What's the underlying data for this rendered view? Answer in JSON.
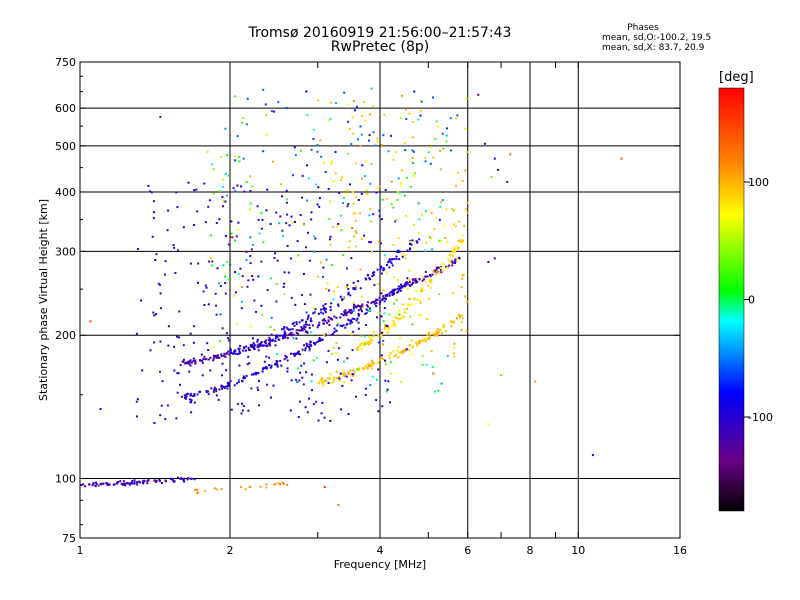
{
  "title": "Tromsø 20160919 21:56:00–21:57:43",
  "subtitle": "RwPretec (8p)",
  "stats": {
    "header": "Phases",
    "line1": "mean, sd,O:-100.2, 19.5",
    "line2": "mean, sd,X: 83.7, 20.9"
  },
  "colorbar": {
    "unit": "[deg]",
    "ticks": [
      {
        "value": 100,
        "label": "100"
      },
      {
        "value": 0,
        "label": "0"
      },
      {
        "value": -100,
        "label": "-100"
      }
    ],
    "range": [
      -180,
      180
    ]
  },
  "chart_data": {
    "type": "scatter",
    "xlabel": "Frequency [MHz]",
    "ylabel": "Stationary phase Virtual Height [km]",
    "x_scale": "log",
    "y_scale": "log",
    "xlim": [
      1,
      16
    ],
    "ylim": [
      75,
      750
    ],
    "x_ticks": [
      {
        "v": 1,
        "label": "1",
        "grid": false
      },
      {
        "v": 2,
        "label": "2",
        "grid": true
      },
      {
        "v": 3,
        "label": "",
        "grid": false
      },
      {
        "v": 4,
        "label": "4",
        "grid": true
      },
      {
        "v": 5,
        "label": "",
        "grid": false
      },
      {
        "v": 6,
        "label": "6",
        "grid": true
      },
      {
        "v": 7,
        "label": "",
        "grid": false
      },
      {
        "v": 8,
        "label": "8",
        "grid": true
      },
      {
        "v": 9,
        "label": "",
        "grid": false
      },
      {
        "v": 10,
        "label": "10",
        "grid": true
      },
      {
        "v": 16,
        "label": "16",
        "grid": false
      }
    ],
    "y_ticks": [
      {
        "v": 75,
        "label": "75",
        "grid": false
      },
      {
        "v": 100,
        "label": "100",
        "grid": true
      },
      {
        "v": 200,
        "label": "200",
        "grid": true
      },
      {
        "v": 300,
        "label": "300",
        "grid": true
      },
      {
        "v": 400,
        "label": "400",
        "grid": true
      },
      {
        "v": 500,
        "label": "500",
        "grid": true
      },
      {
        "v": 600,
        "label": "600",
        "grid": true
      },
      {
        "v": 750,
        "label": "750",
        "grid": false
      }
    ],
    "traces": [
      {
        "name": "E-layer O",
        "x_range": [
          1.0,
          1.7
        ],
        "h0": 97,
        "h1": 100,
        "phase": -110,
        "n": 90,
        "jitter": 0.015
      },
      {
        "name": "E-layer X",
        "x_range": [
          1.7,
          2.7
        ],
        "h0": 94,
        "h1": 98,
        "phase": 110,
        "n": 22,
        "jitter": 0.02
      },
      {
        "name": "F O-trace 1",
        "x_range": [
          1.6,
          5.8
        ],
        "h0": 175,
        "h1": 290,
        "phase": -115,
        "n": 260,
        "jitter": 0.025
      },
      {
        "name": "F O-trace 2",
        "x_range": [
          1.6,
          4.6
        ],
        "h0": 148,
        "h1": 260,
        "phase": -100,
        "n": 200,
        "jitter": 0.025
      },
      {
        "name": "F O-trace 3",
        "x_range": [
          2.0,
          4.8
        ],
        "h0": 185,
        "h1": 320,
        "phase": -95,
        "n": 150,
        "jitter": 0.04
      },
      {
        "name": "F X-trace 1",
        "x_range": [
          3.0,
          5.9
        ],
        "h0": 160,
        "h1": 220,
        "phase": 95,
        "n": 140,
        "jitter": 0.035
      },
      {
        "name": "F X-trace 2",
        "x_range": [
          3.6,
          5.9
        ],
        "h0": 190,
        "h1": 320,
        "phase": 85,
        "n": 110,
        "jitter": 0.05
      }
    ],
    "clouds": [
      {
        "name": "diffuse O",
        "x_range": [
          1.3,
          4.2
        ],
        "y_range": [
          130,
          420
        ],
        "phase": -105,
        "n": 320
      },
      {
        "name": "diffuse mixed",
        "x_range": [
          1.8,
          5.5
        ],
        "y_range": [
          150,
          600
        ],
        "phase": 0,
        "n": 220
      },
      {
        "name": "diffuse X",
        "x_range": [
          3.0,
          6.0
        ],
        "y_range": [
          180,
          640
        ],
        "phase": 90,
        "n": 160
      },
      {
        "name": "sparse high",
        "x_range": [
          2.0,
          6.0
        ],
        "y_range": [
          420,
          660
        ],
        "phase": -60,
        "n": 50
      }
    ],
    "points": [
      {
        "x": 1.45,
        "y": 575,
        "phase": -120
      },
      {
        "x": 2.05,
        "y": 635,
        "phase": 20
      },
      {
        "x": 2.45,
        "y": 590,
        "phase": -110
      },
      {
        "x": 6.3,
        "y": 640,
        "phase": -130
      },
      {
        "x": 6.5,
        "y": 505,
        "phase": -110
      },
      {
        "x": 6.8,
        "y": 470,
        "phase": -90
      },
      {
        "x": 6.9,
        "y": 445,
        "phase": -160
      },
      {
        "x": 7.3,
        "y": 480,
        "phase": 130
      },
      {
        "x": 7.2,
        "y": 420,
        "phase": -120
      },
      {
        "x": 6.7,
        "y": 430,
        "phase": 40
      },
      {
        "x": 12.2,
        "y": 470,
        "phase": 140
      },
      {
        "x": 6.6,
        "y": 285,
        "phase": -120
      },
      {
        "x": 6.8,
        "y": 290,
        "phase": -115
      },
      {
        "x": 7.0,
        "y": 165,
        "phase": 30
      },
      {
        "x": 8.2,
        "y": 160,
        "phase": 110
      },
      {
        "x": 6.6,
        "y": 130,
        "phase": 70
      },
      {
        "x": 10.7,
        "y": 112,
        "phase": -100
      },
      {
        "x": 1.05,
        "y": 214,
        "phase": 140
      },
      {
        "x": 1.1,
        "y": 140,
        "phase": -100
      },
      {
        "x": 1.3,
        "y": 145,
        "phase": -120
      },
      {
        "x": 3.3,
        "y": 88,
        "phase": 120
      },
      {
        "x": 3.1,
        "y": 96,
        "phase": 150
      }
    ]
  }
}
